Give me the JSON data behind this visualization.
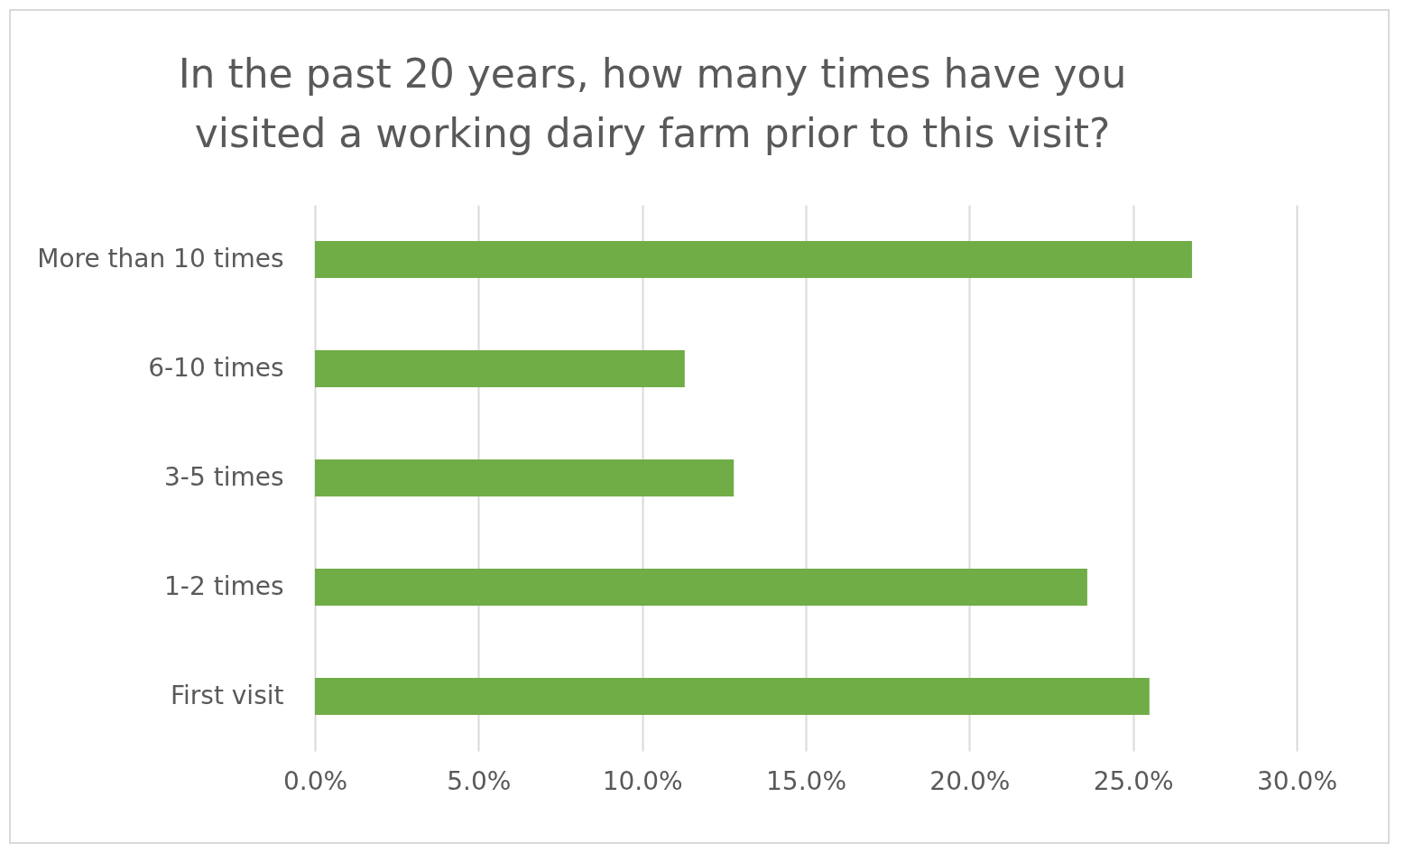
{
  "chart_data": {
    "type": "bar",
    "orientation": "horizontal",
    "title": "In the past 20 years, how many times have you visited a working dairy farm prior to this visit?",
    "categories": [
      "More than 10 times",
      "6-10 times",
      "3-5 times",
      "1-2 times",
      "First visit"
    ],
    "values": [
      26.8,
      11.3,
      12.8,
      23.6,
      25.5
    ],
    "color": "#70ad47",
    "xlim": [
      0,
      30
    ],
    "xticks": [
      {
        "value": 0,
        "label": "0.0%"
      },
      {
        "value": 5,
        "label": "5.0%"
      },
      {
        "value": 10,
        "label": "10.0%"
      },
      {
        "value": 15,
        "label": "15.0%"
      },
      {
        "value": 20,
        "label": "20.0%"
      },
      {
        "value": 25,
        "label": "25.0%"
      },
      {
        "value": 30,
        "label": "30.0%"
      }
    ],
    "grid": "x"
  }
}
